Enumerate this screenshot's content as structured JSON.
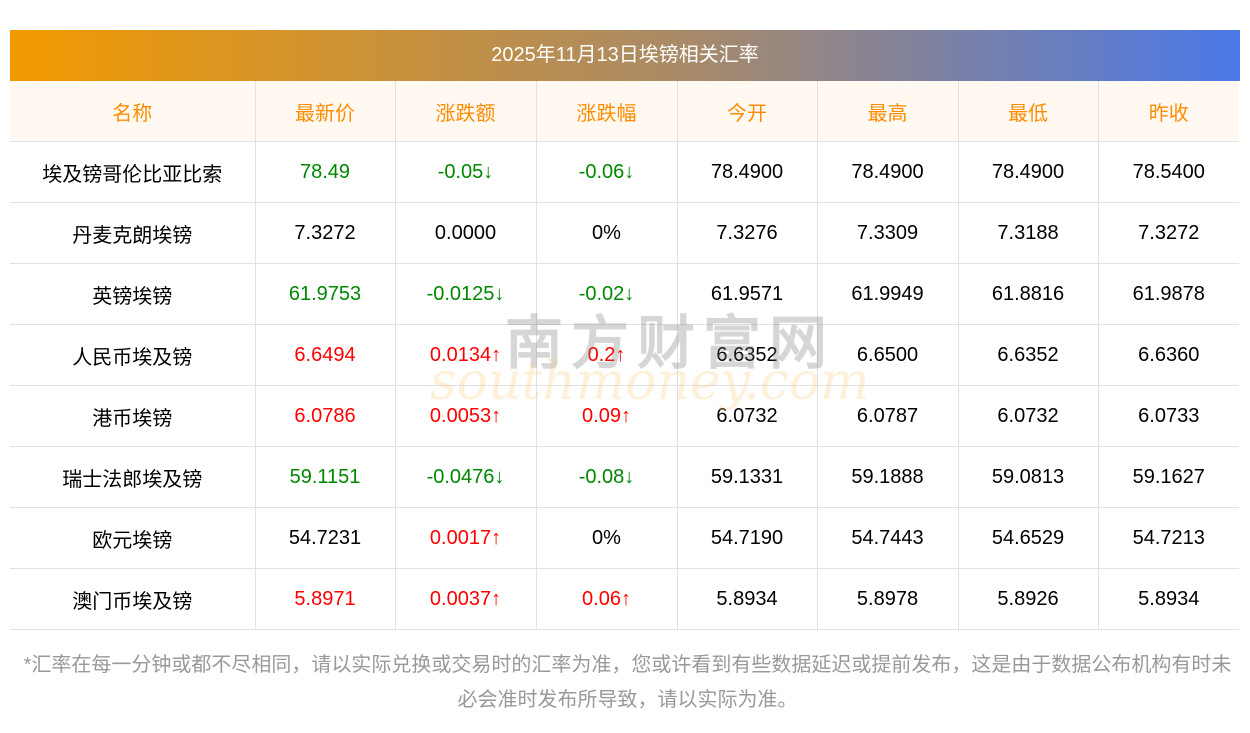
{
  "title": "2025年11月13日埃镑相关汇率",
  "headers": [
    "名称",
    "最新价",
    "涨跌额",
    "涨跌幅",
    "今开",
    "最高",
    "最低",
    "昨收"
  ],
  "rows": [
    {
      "name": "埃及镑哥伦比亚比索",
      "latest": "78.49",
      "change": "-0.05↓",
      "pct": "-0.06↓",
      "open": "78.4900",
      "high": "78.4900",
      "low": "78.4900",
      "prev": "78.5400",
      "dir": "down",
      "pdir": "down"
    },
    {
      "name": "丹麦克朗埃镑",
      "latest": "7.3272",
      "change": "0.0000",
      "pct": "0%",
      "open": "7.3276",
      "high": "7.3309",
      "low": "7.3188",
      "prev": "7.3272",
      "dir": "flat",
      "pdir": "flat"
    },
    {
      "name": "英镑埃镑",
      "latest": "61.9753",
      "change": "-0.0125↓",
      "pct": "-0.02↓",
      "open": "61.9571",
      "high": "61.9949",
      "low": "61.8816",
      "prev": "61.9878",
      "dir": "down",
      "pdir": "down"
    },
    {
      "name": "人民币埃及镑",
      "latest": "6.6494",
      "change": "0.0134↑",
      "pct": "0.2↑",
      "open": "6.6352",
      "high": "6.6500",
      "low": "6.6352",
      "prev": "6.6360",
      "dir": "up",
      "pdir": "up"
    },
    {
      "name": "港币埃镑",
      "latest": "6.0786",
      "change": "0.0053↑",
      "pct": "0.09↑",
      "open": "6.0732",
      "high": "6.0787",
      "low": "6.0732",
      "prev": "6.0733",
      "dir": "up",
      "pdir": "up"
    },
    {
      "name": "瑞士法郎埃及镑",
      "latest": "59.1151",
      "change": "-0.0476↓",
      "pct": "-0.08↓",
      "open": "59.1331",
      "high": "59.1888",
      "low": "59.0813",
      "prev": "59.1627",
      "dir": "down",
      "pdir": "down"
    },
    {
      "name": "欧元埃镑",
      "latest": "54.7231",
      "change": "0.0017↑",
      "pct": "0%",
      "open": "54.7190",
      "high": "54.7443",
      "low": "54.6529",
      "prev": "54.7213",
      "dir": "flat",
      "cdir": "up",
      "pdir": "flat"
    },
    {
      "name": "澳门币埃及镑",
      "latest": "5.8971",
      "change": "0.0037↑",
      "pct": "0.06↑",
      "open": "5.8934",
      "high": "5.8978",
      "low": "5.8926",
      "prev": "5.8934",
      "dir": "up",
      "pdir": "up"
    }
  ],
  "note": "*汇率在每一分钟或都不尽相同，请以实际兑换或交易时的汇率为准，您或许看到有些数据延迟或提前发布，这是由于数据公布机构有时未必会准时发布所导致，请以实际为准。",
  "watermark": {
    "cn": "南方财富网",
    "en": "southmoney.com"
  },
  "colors": {
    "up": "#ff0000",
    "down": "#008800",
    "header": "#ff8c00"
  }
}
